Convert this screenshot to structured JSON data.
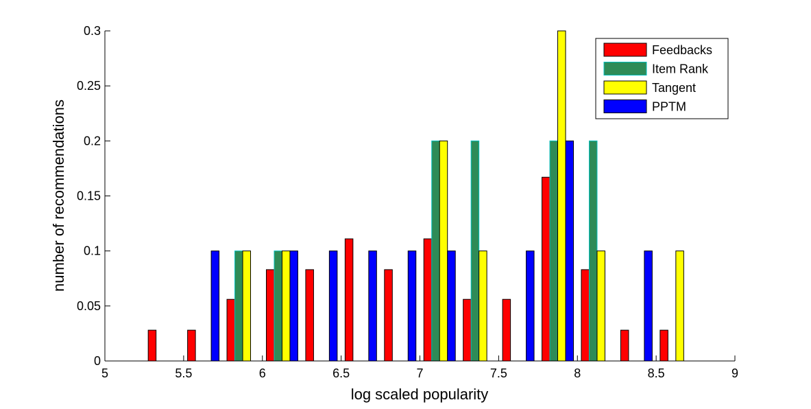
{
  "chart_data": {
    "type": "bar",
    "xlabel": "log scaled popularity",
    "ylabel": "number of recommendations",
    "xlim": [
      5,
      9
    ],
    "ylim": [
      0,
      0.3
    ],
    "x_ticks": [
      "5",
      "5.5",
      "6",
      "6.5",
      "7",
      "7.5",
      "8",
      "8.5",
      "9"
    ],
    "y_ticks": [
      "0",
      "0.05",
      "0.1",
      "0.15",
      "0.2",
      "0.25",
      "0.3"
    ],
    "bin_centers": [
      5.125,
      5.375,
      5.625,
      5.875,
      6.125,
      6.375,
      6.625,
      6.875,
      7.125,
      7.375,
      7.625,
      7.875,
      8.125,
      8.375,
      8.625,
      8.875
    ],
    "grid": false,
    "legend_position": "top-right",
    "series": [
      {
        "name": "Feedbacks",
        "color": "#ff0000",
        "values": [
          0,
          0.028,
          0.028,
          0.056,
          0.083,
          0.083,
          0.111,
          0.083,
          0.111,
          0.056,
          0.056,
          0.167,
          0.083,
          0.028,
          0.028,
          0
        ]
      },
      {
        "name": "Item Rank",
        "color": "#2e8b57",
        "edge_color": "#00bfbf",
        "values": [
          0,
          0,
          0,
          0.1,
          0.1,
          0,
          0,
          0,
          0.2,
          0.2,
          0,
          0.2,
          0.2,
          0,
          0,
          0
        ]
      },
      {
        "name": "Tangent",
        "color": "#ffff00",
        "values": [
          0,
          0,
          0,
          0.1,
          0.1,
          0,
          0,
          0,
          0.2,
          0.1,
          0,
          0.3,
          0.1,
          0,
          0.1,
          0
        ]
      },
      {
        "name": "PPTM",
        "color": "#0000ff",
        "values": [
          0,
          0,
          0.1,
          0,
          0.1,
          0.1,
          0.1,
          0.1,
          0.1,
          0,
          0.1,
          0.2,
          0,
          0.1,
          0,
          0
        ]
      }
    ]
  }
}
